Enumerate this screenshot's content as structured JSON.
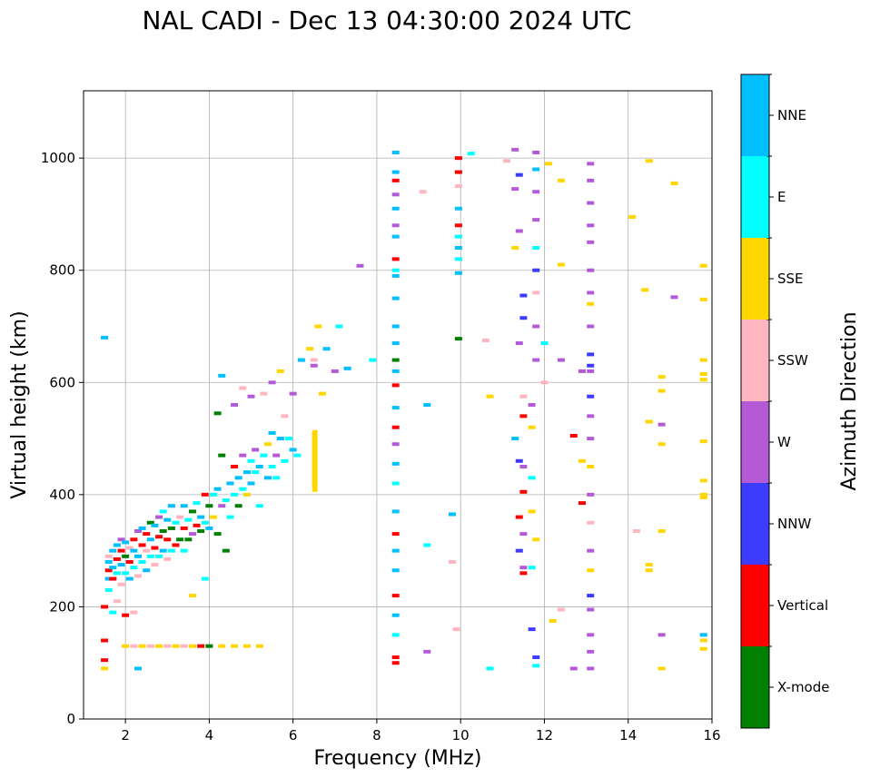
{
  "chart_data": {
    "type": "scatter",
    "title": "NAL CADI - Dec 13 04:30:00 2024 UTC",
    "xlabel": "Frequency (MHz)",
    "ylabel": "Virtual height (km)",
    "xlim": [
      1,
      16
    ],
    "ylim": [
      0,
      1120
    ],
    "xticks": [
      2,
      4,
      6,
      8,
      10,
      12,
      14,
      16
    ],
    "yticks": [
      0,
      200,
      400,
      600,
      800,
      1000
    ],
    "grid": true,
    "colorbar": {
      "label": "Azimuth Direction",
      "categories": [
        {
          "name": "X-mode",
          "color": "#008000"
        },
        {
          "name": "Vertical",
          "color": "#ff0000"
        },
        {
          "name": "NNW",
          "color": "#3c3cff"
        },
        {
          "name": "W",
          "color": "#b45ad7"
        },
        {
          "name": "SSW",
          "color": "#ffb6c1"
        },
        {
          "name": "SSE",
          "color": "#ffd700"
        },
        {
          "name": "E",
          "color": "#00ffff"
        },
        {
          "name": "NNE",
          "color": "#00bfff"
        }
      ]
    },
    "points": [
      [
        1.5,
        680,
        "NNE"
      ],
      [
        1.5,
        200,
        "Vertical"
      ],
      [
        1.5,
        140,
        "Vertical"
      ],
      [
        1.5,
        105,
        "Vertical"
      ],
      [
        1.5,
        90,
        "SSE"
      ],
      [
        1.6,
        230,
        "E"
      ],
      [
        1.6,
        250,
        "NNE"
      ],
      [
        1.6,
        265,
        "Vertical"
      ],
      [
        1.6,
        280,
        "NNE"
      ],
      [
        1.6,
        290,
        "SSW"
      ],
      [
        1.7,
        190,
        "E"
      ],
      [
        1.7,
        250,
        "Vertical"
      ],
      [
        1.7,
        270,
        "NNE"
      ],
      [
        1.7,
        300,
        "NNE"
      ],
      [
        1.8,
        210,
        "SSW"
      ],
      [
        1.8,
        260,
        "E"
      ],
      [
        1.8,
        285,
        "Vertical"
      ],
      [
        1.8,
        310,
        "NNE"
      ],
      [
        1.9,
        240,
        "SSW"
      ],
      [
        1.9,
        275,
        "NNE"
      ],
      [
        1.9,
        300,
        "Vertical"
      ],
      [
        1.9,
        320,
        "W"
      ],
      [
        2.0,
        260,
        "E"
      ],
      [
        2.0,
        290,
        "X-mode"
      ],
      [
        2.0,
        315,
        "NNE"
      ],
      [
        2.1,
        250,
        "NNE"
      ],
      [
        2.1,
        280,
        "Vertical"
      ],
      [
        2.1,
        305,
        "SSW"
      ],
      [
        2.2,
        270,
        "E"
      ],
      [
        2.2,
        300,
        "NNE"
      ],
      [
        2.2,
        320,
        "Vertical"
      ],
      [
        2.3,
        255,
        "SSW"
      ],
      [
        2.3,
        290,
        "NNE"
      ],
      [
        2.3,
        335,
        "W"
      ],
      [
        2.4,
        280,
        "E"
      ],
      [
        2.4,
        310,
        "Vertical"
      ],
      [
        2.4,
        340,
        "NNE"
      ],
      [
        2.5,
        265,
        "NNE"
      ],
      [
        2.5,
        300,
        "SSW"
      ],
      [
        2.5,
        330,
        "Vertical"
      ],
      [
        2.6,
        290,
        "E"
      ],
      [
        2.6,
        320,
        "NNE"
      ],
      [
        2.6,
        350,
        "X-mode"
      ],
      [
        2.7,
        275,
        "SSW"
      ],
      [
        2.7,
        305,
        "Vertical"
      ],
      [
        2.7,
        345,
        "NNE"
      ],
      [
        2.8,
        290,
        "E"
      ],
      [
        2.8,
        325,
        "Vertical"
      ],
      [
        2.8,
        360,
        "W"
      ],
      [
        2.9,
        300,
        "NNE"
      ],
      [
        2.9,
        335,
        "X-mode"
      ],
      [
        2.9,
        370,
        "E"
      ],
      [
        3.0,
        285,
        "SSW"
      ],
      [
        3.0,
        320,
        "Vertical"
      ],
      [
        3.0,
        355,
        "NNE"
      ],
      [
        3.1,
        300,
        "E"
      ],
      [
        3.1,
        340,
        "X-mode"
      ],
      [
        3.1,
        380,
        "NNE"
      ],
      [
        3.2,
        310,
        "Vertical"
      ],
      [
        3.2,
        350,
        "E"
      ],
      [
        3.3,
        320,
        "X-mode"
      ],
      [
        3.3,
        360,
        "SSW"
      ],
      [
        3.4,
        300,
        "E"
      ],
      [
        3.4,
        340,
        "Vertical"
      ],
      [
        3.4,
        380,
        "NNE"
      ],
      [
        3.5,
        320,
        "X-mode"
      ],
      [
        3.5,
        355,
        "E"
      ],
      [
        3.6,
        330,
        "W"
      ],
      [
        3.6,
        370,
        "X-mode"
      ],
      [
        3.7,
        345,
        "Vertical"
      ],
      [
        3.7,
        385,
        "E"
      ],
      [
        3.8,
        335,
        "X-mode"
      ],
      [
        3.8,
        360,
        "NNE"
      ],
      [
        3.9,
        350,
        "E"
      ],
      [
        3.9,
        400,
        "Vertical"
      ],
      [
        4.0,
        380,
        "X-mode"
      ],
      [
        4.0,
        340,
        "NNE"
      ],
      [
        4.1,
        360,
        "SSE"
      ],
      [
        4.1,
        400,
        "E"
      ],
      [
        4.2,
        330,
        "X-mode"
      ],
      [
        4.2,
        410,
        "NNE"
      ],
      [
        4.3,
        380,
        "W"
      ],
      [
        4.3,
        470,
        "X-mode"
      ],
      [
        4.4,
        390,
        "E"
      ],
      [
        4.4,
        300,
        "X-mode"
      ],
      [
        4.5,
        420,
        "NNE"
      ],
      [
        4.5,
        360,
        "E"
      ],
      [
        4.6,
        450,
        "Vertical"
      ],
      [
        4.6,
        400,
        "E"
      ],
      [
        4.7,
        380,
        "X-mode"
      ],
      [
        4.7,
        430,
        "NNE"
      ],
      [
        4.8,
        410,
        "E"
      ],
      [
        4.8,
        470,
        "W"
      ],
      [
        4.9,
        440,
        "NNE"
      ],
      [
        4.9,
        400,
        "SSE"
      ],
      [
        5.0,
        460,
        "E"
      ],
      [
        5.0,
        420,
        "NNE"
      ],
      [
        5.1,
        440,
        "E"
      ],
      [
        5.1,
        480,
        "W"
      ],
      [
        5.2,
        450,
        "NNE"
      ],
      [
        5.2,
        380,
        "E"
      ],
      [
        5.3,
        470,
        "E"
      ],
      [
        5.4,
        430,
        "NNE"
      ],
      [
        5.4,
        490,
        "SSE"
      ],
      [
        5.5,
        450,
        "E"
      ],
      [
        5.5,
        510,
        "NNE"
      ],
      [
        5.6,
        470,
        "W"
      ],
      [
        5.6,
        430,
        "E"
      ],
      [
        5.7,
        500,
        "NNE"
      ],
      [
        5.8,
        460,
        "E"
      ],
      [
        5.8,
        540,
        "SSW"
      ],
      [
        5.9,
        500,
        "E"
      ],
      [
        6.0,
        480,
        "NNE"
      ],
      [
        6.0,
        580,
        "W"
      ],
      [
        6.1,
        470,
        "E"
      ],
      [
        4.2,
        545,
        "X-mode"
      ],
      [
        4.3,
        612,
        "NNE"
      ],
      [
        4.6,
        560,
        "W"
      ],
      [
        4.8,
        590,
        "SSW"
      ],
      [
        5.0,
        575,
        "W"
      ],
      [
        5.3,
        580,
        "SSW"
      ],
      [
        5.5,
        600,
        "W"
      ],
      [
        5.7,
        620,
        "SSE"
      ],
      [
        6.2,
        640,
        "NNE"
      ],
      [
        6.4,
        660,
        "SSE"
      ],
      [
        6.5,
        630,
        "W"
      ],
      [
        6.6,
        700,
        "SSE"
      ],
      [
        6.8,
        660,
        "NNE"
      ],
      [
        7.0,
        620,
        "W"
      ],
      [
        7.1,
        700,
        "E"
      ],
      [
        7.3,
        625,
        "NNE"
      ],
      [
        7.6,
        808,
        "W"
      ],
      [
        7.9,
        640,
        "E"
      ],
      [
        6.5,
        640,
        "SSW"
      ],
      [
        6.7,
        580,
        "SSE"
      ],
      [
        2.0,
        130,
        "SSE"
      ],
      [
        2.2,
        130,
        "SSW"
      ],
      [
        2.4,
        130,
        "SSE"
      ],
      [
        2.6,
        130,
        "SSW"
      ],
      [
        2.8,
        130,
        "SSE"
      ],
      [
        3.0,
        130,
        "SSW"
      ],
      [
        3.2,
        130,
        "SSE"
      ],
      [
        3.4,
        130,
        "SSW"
      ],
      [
        3.6,
        130,
        "SSE"
      ],
      [
        3.8,
        130,
        "Vertical"
      ],
      [
        4.0,
        130,
        "X-mode"
      ],
      [
        4.3,
        130,
        "SSE"
      ],
      [
        4.6,
        130,
        "SSE"
      ],
      [
        4.9,
        130,
        "SSE"
      ],
      [
        5.2,
        130,
        "SSE"
      ],
      [
        2.0,
        185,
        "Vertical"
      ],
      [
        2.2,
        190,
        "SSW"
      ],
      [
        2.3,
        90,
        "NNE"
      ],
      [
        3.6,
        220,
        "SSE"
      ],
      [
        3.9,
        250,
        "E"
      ],
      [
        8.45,
        1010,
        "NNE"
      ],
      [
        8.45,
        975,
        "NNE"
      ],
      [
        8.45,
        960,
        "Vertical"
      ],
      [
        8.45,
        935,
        "W"
      ],
      [
        8.45,
        910,
        "NNE"
      ],
      [
        8.45,
        880,
        "W"
      ],
      [
        8.45,
        860,
        "NNE"
      ],
      [
        8.45,
        820,
        "Vertical"
      ],
      [
        8.45,
        790,
        "NNE"
      ],
      [
        8.45,
        750,
        "NNE"
      ],
      [
        8.45,
        700,
        "NNE"
      ],
      [
        8.45,
        670,
        "NNE"
      ],
      [
        8.45,
        640,
        "X-mode"
      ],
      [
        8.45,
        620,
        "NNE"
      ],
      [
        8.45,
        595,
        "Vertical"
      ],
      [
        8.45,
        555,
        "NNE"
      ],
      [
        8.45,
        520,
        "Vertical"
      ],
      [
        8.45,
        490,
        "W"
      ],
      [
        8.45,
        455,
        "NNE"
      ],
      [
        8.45,
        420,
        "E"
      ],
      [
        8.45,
        370,
        "NNE"
      ],
      [
        8.45,
        330,
        "Vertical"
      ],
      [
        8.45,
        300,
        "NNE"
      ],
      [
        8.45,
        265,
        "NNE"
      ],
      [
        8.45,
        220,
        "Vertical"
      ],
      [
        8.45,
        185,
        "NNE"
      ],
      [
        8.45,
        150,
        "E"
      ],
      [
        8.45,
        110,
        "Vertical"
      ],
      [
        8.45,
        100,
        "Vertical"
      ],
      [
        8.45,
        800,
        "E"
      ],
      [
        9.2,
        560,
        "NNE"
      ],
      [
        9.1,
        940,
        "SSW"
      ],
      [
        9.2,
        120,
        "W"
      ],
      [
        9.2,
        310,
        "E"
      ],
      [
        9.8,
        365,
        "NNE"
      ],
      [
        9.95,
        1000,
        "Vertical"
      ],
      [
        9.95,
        975,
        "Vertical"
      ],
      [
        9.95,
        950,
        "SSW"
      ],
      [
        9.95,
        910,
        "NNE"
      ],
      [
        9.95,
        880,
        "Vertical"
      ],
      [
        9.95,
        860,
        "E"
      ],
      [
        9.95,
        840,
        "NNE"
      ],
      [
        9.95,
        820,
        "E"
      ],
      [
        9.95,
        795,
        "NNE"
      ],
      [
        9.95,
        678,
        "X-mode"
      ],
      [
        10.25,
        1008,
        "E"
      ],
      [
        10.6,
        675,
        "SSW"
      ],
      [
        10.7,
        90,
        "E"
      ],
      [
        10.7,
        575,
        "SSE"
      ],
      [
        11.1,
        995,
        "SSW"
      ],
      [
        11.3,
        1015,
        "W"
      ],
      [
        11.4,
        970,
        "NNW"
      ],
      [
        11.3,
        945,
        "W"
      ],
      [
        11.4,
        870,
        "W"
      ],
      [
        11.3,
        840,
        "SSE"
      ],
      [
        11.5,
        755,
        "NNW"
      ],
      [
        11.5,
        715,
        "NNW"
      ],
      [
        11.4,
        670,
        "W"
      ],
      [
        11.5,
        575,
        "SSW"
      ],
      [
        11.5,
        540,
        "Vertical"
      ],
      [
        11.3,
        500,
        "NNE"
      ],
      [
        11.4,
        460,
        "NNW"
      ],
      [
        11.5,
        450,
        "W"
      ],
      [
        11.5,
        405,
        "Vertical"
      ],
      [
        11.4,
        360,
        "Vertical"
      ],
      [
        11.5,
        330,
        "W"
      ],
      [
        11.4,
        300,
        "NNW"
      ],
      [
        11.5,
        270,
        "W"
      ],
      [
        11.5,
        260,
        "Vertical"
      ],
      [
        11.8,
        1010,
        "W"
      ],
      [
        11.8,
        980,
        "NNE"
      ],
      [
        11.8,
        940,
        "W"
      ],
      [
        11.8,
        890,
        "W"
      ],
      [
        11.8,
        840,
        "E"
      ],
      [
        11.8,
        800,
        "NNW"
      ],
      [
        11.8,
        760,
        "SSW"
      ],
      [
        11.8,
        700,
        "W"
      ],
      [
        11.8,
        640,
        "W"
      ],
      [
        11.7,
        560,
        "W"
      ],
      [
        11.7,
        520,
        "SSE"
      ],
      [
        11.7,
        430,
        "E"
      ],
      [
        11.7,
        370,
        "SSE"
      ],
      [
        11.8,
        320,
        "SSE"
      ],
      [
        11.7,
        270,
        "E"
      ],
      [
        11.7,
        160,
        "NNW"
      ],
      [
        11.8,
        110,
        "NNW"
      ],
      [
        11.8,
        95,
        "E"
      ],
      [
        12.1,
        990,
        "SSE"
      ],
      [
        12.0,
        670,
        "E"
      ],
      [
        12.0,
        600,
        "SSW"
      ],
      [
        12.2,
        175,
        "SSE"
      ],
      [
        12.4,
        195,
        "SSW"
      ],
      [
        12.4,
        960,
        "SSE"
      ],
      [
        12.4,
        810,
        "SSE"
      ],
      [
        12.4,
        640,
        "W"
      ],
      [
        12.7,
        505,
        "Vertical"
      ],
      [
        12.9,
        620,
        "W"
      ],
      [
        12.9,
        385,
        "Vertical"
      ],
      [
        12.9,
        460,
        "SSE"
      ],
      [
        12.7,
        90,
        "W"
      ],
      [
        13.1,
        990,
        "W"
      ],
      [
        13.1,
        960,
        "W"
      ],
      [
        13.1,
        920,
        "W"
      ],
      [
        13.1,
        880,
        "W"
      ],
      [
        13.1,
        850,
        "W"
      ],
      [
        13.1,
        800,
        "W"
      ],
      [
        13.1,
        760,
        "W"
      ],
      [
        13.1,
        700,
        "W"
      ],
      [
        13.1,
        650,
        "NNW"
      ],
      [
        13.1,
        620,
        "W"
      ],
      [
        13.1,
        575,
        "NNW"
      ],
      [
        13.1,
        540,
        "W"
      ],
      [
        13.1,
        500,
        "W"
      ],
      [
        13.1,
        450,
        "SSE"
      ],
      [
        13.1,
        400,
        "W"
      ],
      [
        13.1,
        350,
        "SSW"
      ],
      [
        13.1,
        300,
        "W"
      ],
      [
        13.1,
        265,
        "SSE"
      ],
      [
        13.1,
        220,
        "NNW"
      ],
      [
        13.1,
        195,
        "W"
      ],
      [
        13.1,
        150,
        "W"
      ],
      [
        13.1,
        120,
        "W"
      ],
      [
        13.1,
        90,
        "W"
      ],
      [
        13.1,
        630,
        "NNW"
      ],
      [
        13.1,
        740,
        "SSE"
      ],
      [
        14.1,
        895,
        "SSE"
      ],
      [
        14.2,
        335,
        "SSW"
      ],
      [
        14.4,
        765,
        "SSE"
      ],
      [
        14.5,
        530,
        "SSE"
      ],
      [
        14.5,
        275,
        "SSE"
      ],
      [
        14.5,
        265,
        "SSE"
      ],
      [
        14.5,
        995,
        "SSE"
      ],
      [
        14.8,
        610,
        "SSE"
      ],
      [
        14.8,
        585,
        "SSE"
      ],
      [
        14.8,
        525,
        "W"
      ],
      [
        14.8,
        490,
        "SSE"
      ],
      [
        14.8,
        335,
        "SSE"
      ],
      [
        14.8,
        150,
        "W"
      ],
      [
        14.8,
        90,
        "SSE"
      ],
      [
        15.1,
        955,
        "SSE"
      ],
      [
        15.1,
        752,
        "W"
      ],
      [
        15.8,
        808,
        "SSE"
      ],
      [
        15.8,
        748,
        "SSE"
      ],
      [
        15.8,
        640,
        "SSE"
      ],
      [
        15.8,
        615,
        "SSE"
      ],
      [
        15.8,
        605,
        "SSE"
      ],
      [
        15.8,
        495,
        "SSE"
      ],
      [
        15.8,
        425,
        "SSE"
      ],
      [
        15.8,
        400,
        "SSE"
      ],
      [
        15.8,
        395,
        "SSE"
      ],
      [
        15.8,
        150,
        "NNE"
      ],
      [
        15.8,
        140,
        "SSE"
      ],
      [
        15.8,
        125,
        "SSE"
      ],
      [
        9.9,
        160,
        "SSW"
      ],
      [
        9.8,
        280,
        "SSW"
      ]
    ],
    "segments": [
      [
        6.52,
        405,
        515,
        "SSE"
      ]
    ]
  }
}
